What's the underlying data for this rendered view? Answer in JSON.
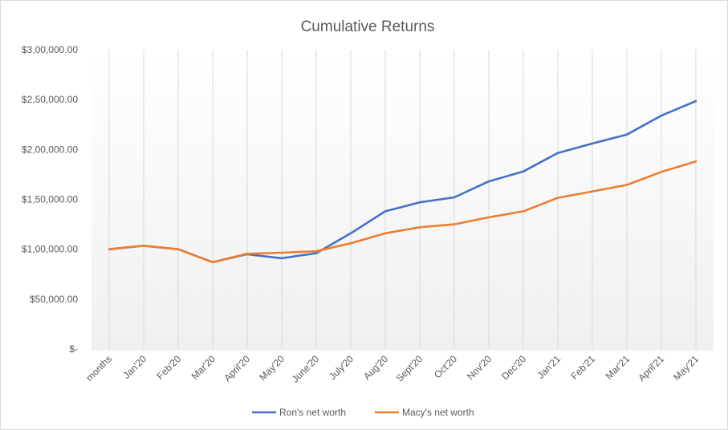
{
  "chart_data": {
    "type": "line",
    "title": "Cumulative Returns",
    "xlabel": "",
    "ylabel": "",
    "categories": [
      "months",
      "Jan'20",
      "Feb'20",
      "Mar'20",
      "April'20",
      "May'20",
      "June'20",
      "July'20",
      "Aug'20",
      "Sept'20",
      "Oct'20",
      "Nov'20",
      "Dec'20",
      "Jan'21",
      "Feb'21",
      "Mar'21",
      "April'21",
      "May'21"
    ],
    "ylim": [
      0,
      300000
    ],
    "yticks": [
      0,
      50000,
      100000,
      150000,
      200000,
      250000,
      300000
    ],
    "ytick_labels": [
      "$-",
      "$50,000.00",
      "$1,00,000.00",
      "$1,50,000.00",
      "$2,00,000.00",
      "$2,50,000.00",
      "$3,00,000.00"
    ],
    "grid": "vertical",
    "legend_position": "bottom",
    "series": [
      {
        "name": "Ron's net worth",
        "color": "#4472c4",
        "values": [
          100000,
          103500,
          100000,
          87000,
          95000,
          91000,
          96000,
          116000,
          138000,
          147000,
          152000,
          168000,
          178000,
          196500,
          206000,
          215000,
          234000,
          248500
        ]
      },
      {
        "name": "Macy's net worth",
        "color": "#ed7d31",
        "values": [
          100000,
          103500,
          100000,
          87000,
          95500,
          96500,
          98000,
          106000,
          116000,
          122000,
          125000,
          132000,
          138000,
          151500,
          158000,
          164500,
          177500,
          188000
        ]
      }
    ]
  }
}
